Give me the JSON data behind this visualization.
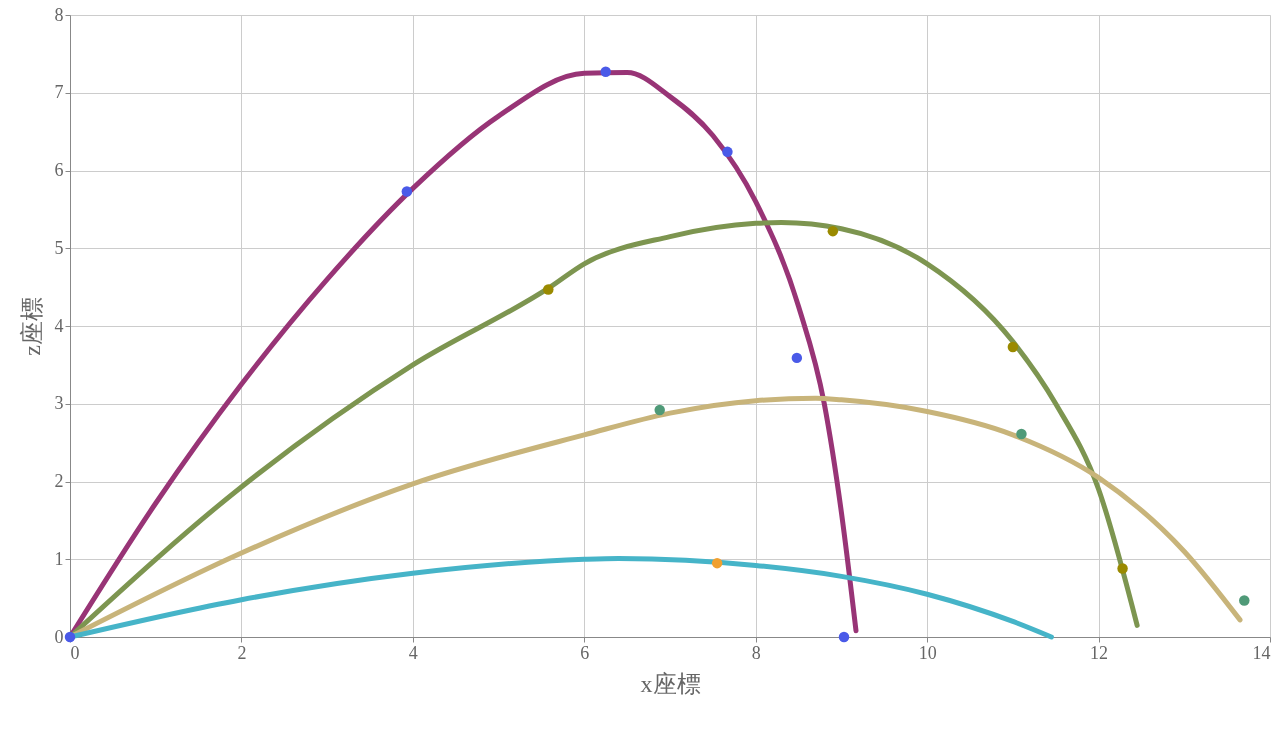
{
  "chart_data": {
    "type": "line",
    "xlabel": "x座標",
    "ylabel": "z座標",
    "xlim": [
      0,
      14
    ],
    "xticks": [
      0,
      2,
      4,
      6,
      8,
      10,
      12,
      14
    ],
    "ylim": [
      0,
      8
    ],
    "yticks": [
      0,
      1,
      2,
      3,
      4,
      5,
      6,
      7,
      8
    ],
    "grid": true,
    "series": [
      {
        "color": "#983476",
        "x": [
          0,
          1,
          2,
          3,
          4,
          5,
          6,
          6.5,
          7,
          7.5,
          8,
          8.5,
          8.8,
          9,
          9.17
        ],
        "values": [
          0,
          1.72,
          3.25,
          4.6,
          5.77,
          6.7,
          7.25,
          7.26,
          6.95,
          6.45,
          5.6,
          4.25,
          3.0,
          1.6,
          0.08
        ]
      },
      {
        "color": "#7d9550",
        "x": [
          0,
          2,
          4,
          5.6,
          6,
          7,
          8,
          8.3,
          9,
          10,
          11,
          11.5,
          12,
          12.45
        ],
        "values": [
          0,
          1.93,
          3.5,
          4.5,
          4.8,
          5.15,
          5.32,
          5.33,
          5.25,
          4.8,
          3.8,
          3.0,
          1.9,
          0.15
        ]
      },
      {
        "color": "#c8b47a",
        "x": [
          0,
          2,
          4,
          6,
          7,
          8,
          8.7,
          9,
          10,
          11,
          12,
          13,
          13.65
        ],
        "values": [
          0,
          1.08,
          1.97,
          2.6,
          2.88,
          3.04,
          3.07,
          3.05,
          2.9,
          2.6,
          2.05,
          1.1,
          0.22
        ]
      },
      {
        "color": "#46b4c8",
        "x": [
          0,
          2,
          4,
          6,
          6.4,
          8,
          9,
          10,
          11,
          11.45
        ],
        "values": [
          0,
          0.48,
          0.82,
          1.0,
          1.01,
          0.92,
          0.78,
          0.55,
          0.2,
          0
        ]
      },
      {
        "type": "scatter",
        "color": "#4a5ae8",
        "x": [
          0,
          3.93,
          6.25,
          7.67,
          8.48,
          9.03
        ],
        "values": [
          0,
          5.73,
          7.27,
          6.24,
          3.59,
          0
        ]
      },
      {
        "type": "scatter",
        "color": "#9a8a00",
        "x": [
          5.58,
          8.9,
          11.0,
          12.28
        ],
        "values": [
          4.47,
          5.22,
          3.73,
          0.88
        ]
      },
      {
        "type": "scatter",
        "color": "#4f9a78",
        "x": [
          6.88,
          11.1,
          13.7
        ],
        "values": [
          2.92,
          2.61,
          0.47
        ]
      },
      {
        "type": "scatter",
        "color": "#f0a030",
        "x": [
          7.55
        ],
        "values": [
          0.95
        ]
      }
    ]
  }
}
